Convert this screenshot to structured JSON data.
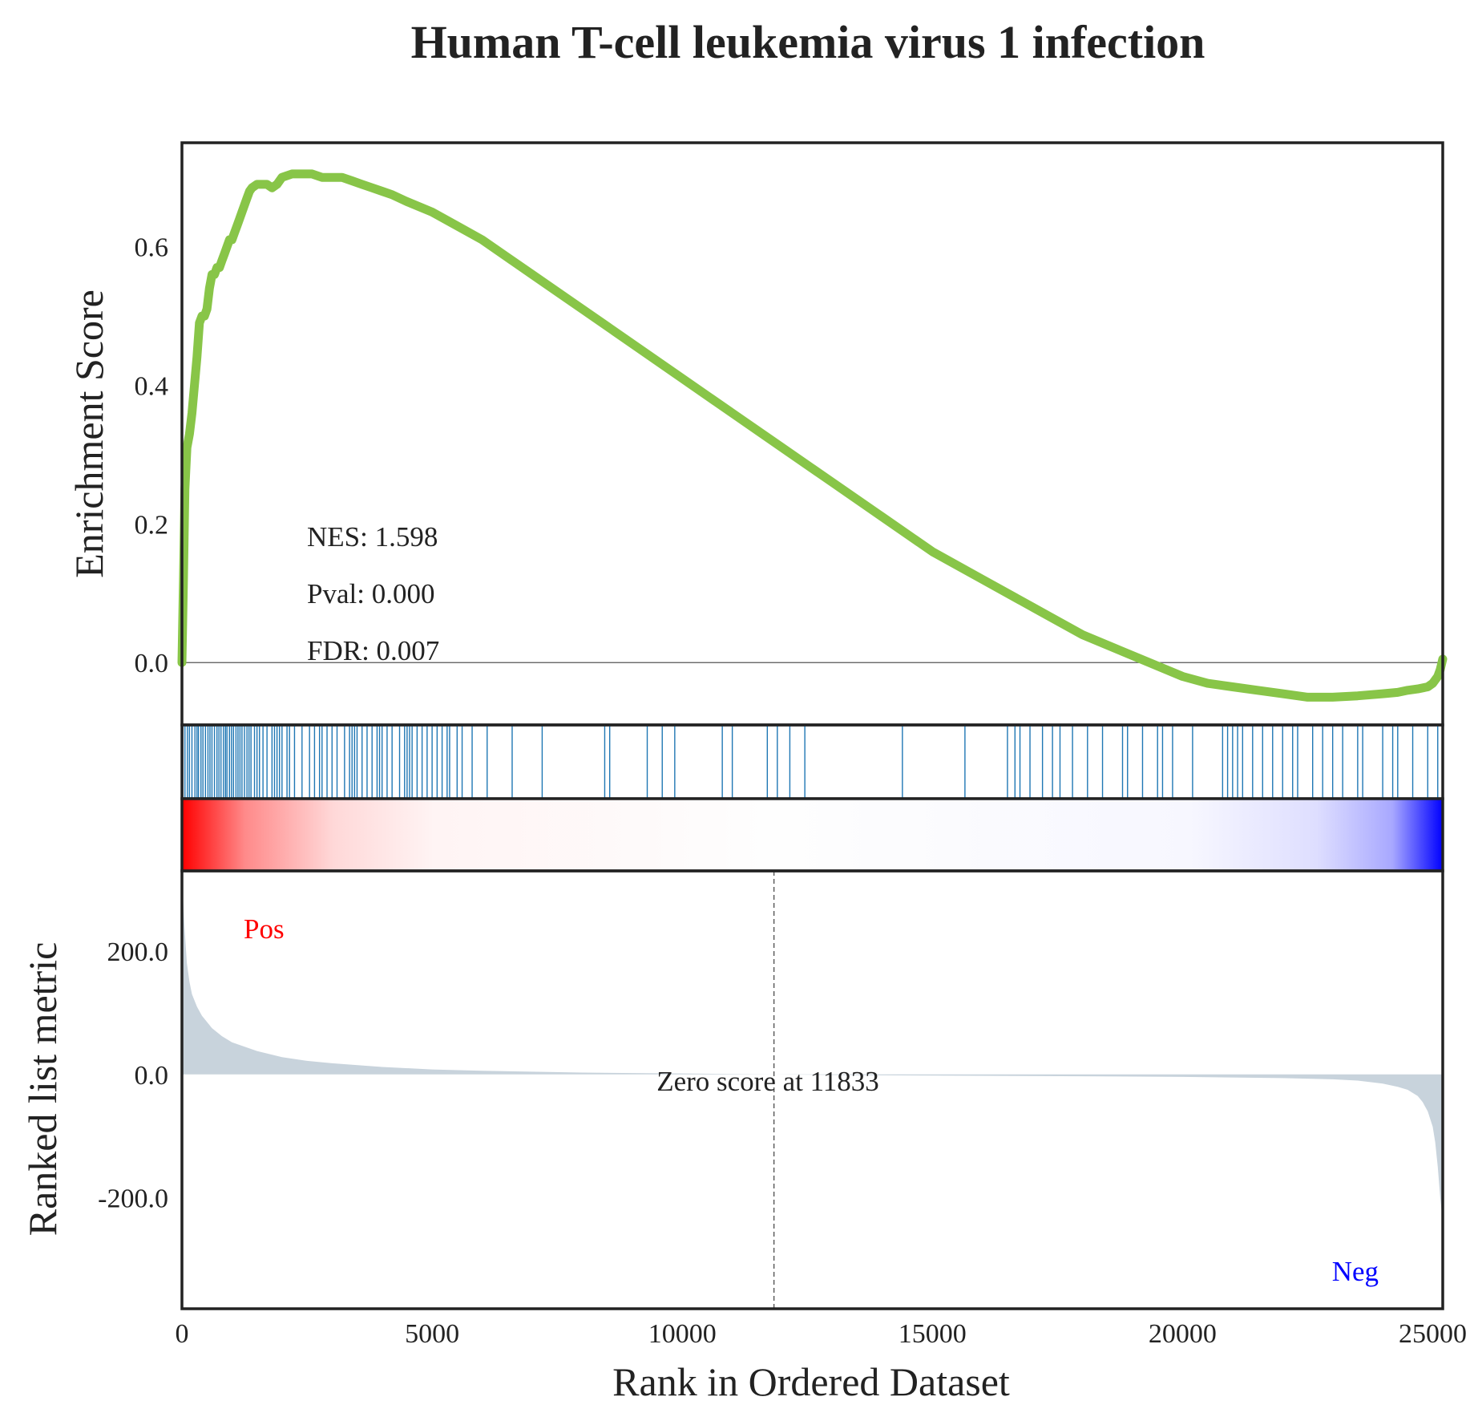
{
  "chart_data": {
    "type": "line",
    "title": "Human T-cell leukemia virus 1 infection",
    "xlabel": "Rank in Ordered Dataset",
    "xlim": [
      0,
      25200
    ],
    "x_ticks": [
      "0",
      "5000",
      "10000",
      "15000",
      "20000",
      "25000"
    ],
    "colors": {
      "es_line": "#88c548",
      "hit_line": "#1f77b4",
      "metric_fill": "#c8d3dc",
      "pos": "#ff0000",
      "neg": "#0000ff"
    },
    "enrichment": {
      "ylabel": "Enrichment Score",
      "ylim": [
        -0.09,
        0.75
      ],
      "y_ticks": [
        "0.0",
        "0.2",
        "0.4",
        "0.6"
      ],
      "baseline": 0,
      "series": [
        {
          "x": [
            0,
            30,
            60,
            100,
            150,
            200,
            250,
            300,
            350,
            400,
            450,
            500,
            550,
            600,
            650,
            700,
            750,
            800,
            850,
            900,
            950,
            1000,
            1050,
            1100,
            1150,
            1200,
            1250,
            1300,
            1350,
            1400,
            1500,
            1600,
            1700,
            1800,
            1900,
            2000,
            2200,
            2400,
            2600,
            2800,
            3000,
            3200,
            3400,
            3600,
            3800,
            4000,
            4200,
            4500,
            5000,
            5500,
            6000,
            6500,
            7000,
            8000,
            9000,
            10000,
            11000,
            12000,
            13000,
            14000,
            15000,
            16000,
            17000,
            18000,
            19000,
            20000,
            20500,
            21000,
            21500,
            22000,
            22500,
            23000,
            23500,
            24000,
            24300,
            24500,
            24700,
            24900,
            25000,
            25100,
            25150,
            25200
          ],
          "y": [
            0.0,
            0.12,
            0.25,
            0.31,
            0.33,
            0.36,
            0.4,
            0.44,
            0.49,
            0.5,
            0.5,
            0.51,
            0.54,
            0.56,
            0.56,
            0.57,
            0.57,
            0.58,
            0.59,
            0.6,
            0.61,
            0.61,
            0.62,
            0.63,
            0.64,
            0.65,
            0.66,
            0.67,
            0.68,
            0.685,
            0.69,
            0.69,
            0.69,
            0.685,
            0.69,
            0.7,
            0.705,
            0.705,
            0.705,
            0.7,
            0.7,
            0.7,
            0.695,
            0.69,
            0.685,
            0.68,
            0.675,
            0.665,
            0.65,
            0.63,
            0.61,
            0.585,
            0.56,
            0.51,
            0.46,
            0.41,
            0.36,
            0.31,
            0.26,
            0.21,
            0.16,
            0.12,
            0.08,
            0.04,
            0.01,
            -0.02,
            -0.03,
            -0.035,
            -0.04,
            -0.045,
            -0.05,
            -0.05,
            -0.048,
            -0.045,
            -0.043,
            -0.04,
            -0.038,
            -0.035,
            -0.03,
            -0.02,
            -0.01,
            0.005
          ]
        }
      ]
    },
    "hits": [
      20,
      60,
      110,
      150,
      200,
      260,
      300,
      330,
      380,
      420,
      470,
      520,
      560,
      600,
      650,
      700,
      740,
      780,
      830,
      870,
      900,
      950,
      990,
      1030,
      1080,
      1120,
      1160,
      1200,
      1250,
      1300,
      1340,
      1380,
      1450,
      1500,
      1550,
      1620,
      1700,
      1800,
      1850,
      1900,
      1950,
      2000,
      2100,
      2150,
      2250,
      2400,
      2550,
      2650,
      2750,
      2800,
      2900,
      3000,
      3100,
      3250,
      3350,
      3400,
      3450,
      3500,
      3600,
      3700,
      3800,
      3900,
      3950,
      4000,
      4100,
      4200,
      4350,
      4450,
      4500,
      4550,
      4600,
      4700,
      4800,
      4900,
      5000,
      5100,
      5200,
      5300,
      5350,
      5500,
      5600,
      5800,
      6100,
      6600,
      7200,
      8450,
      8550,
      9300,
      9600,
      9850,
      10800,
      11000,
      11700,
      11900,
      12150,
      12450,
      14400,
      15650,
      16500,
      16650,
      16750,
      16950,
      17200,
      17400,
      17550,
      17800,
      18100,
      18400,
      18800,
      18900,
      19200,
      19500,
      19600,
      19800,
      20200,
      20800,
      20900,
      21000,
      21100,
      21200,
      21400,
      21600,
      21800,
      22000,
      22200,
      22300,
      22600,
      22800,
      23000,
      23200,
      23500,
      23600,
      24000,
      24200,
      24300,
      24600,
      24900,
      25100
    ],
    "metric": {
      "ylabel": "Ranked list metric",
      "ylim": [
        -380,
        330
      ],
      "y_ticks": [
        "200.0",
        "0.0",
        "-200.0"
      ],
      "fill_series": {
        "x": [
          0,
          25,
          50,
          100,
          150,
          200,
          300,
          400,
          600,
          800,
          1000,
          1500,
          2000,
          2500,
          3000,
          4000,
          5000,
          6000,
          8000,
          10000,
          11833,
          14000,
          18000,
          20000,
          22000,
          23000,
          23500,
          24000,
          24300,
          24500,
          24700,
          24800,
          24900,
          25000,
          25050,
          25100,
          25150,
          25200
        ],
        "y": [
          310,
          280,
          240,
          180,
          150,
          130,
          110,
          95,
          75,
          62,
          52,
          38,
          28,
          22,
          18,
          12,
          8,
          6,
          3,
          1.5,
          0,
          -1.5,
          -3,
          -4,
          -6,
          -8,
          -10,
          -15,
          -20,
          -25,
          -35,
          -45,
          -60,
          -85,
          -110,
          -150,
          -200,
          -240
        ]
      },
      "zero_cross": 11833,
      "zero_label": "Zero score at 11833",
      "pos_label": "Pos",
      "neg_label": "Neg"
    },
    "stats": {
      "nes": "NES: 1.598",
      "pval": "Pval: 0.000",
      "fdr": "FDR: 0.007"
    }
  }
}
